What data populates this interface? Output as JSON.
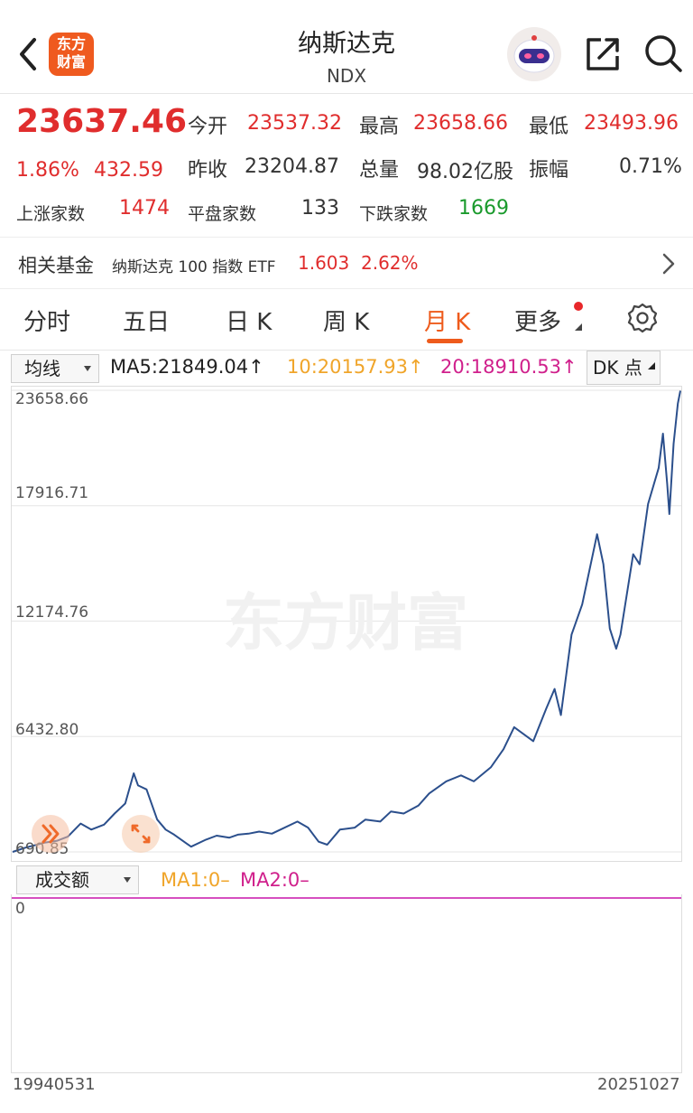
{
  "header": {
    "logo_text_line1": "东方",
    "logo_text_line2": "财富",
    "title": "纳斯达克",
    "subtitle": "NDX",
    "icons": [
      "back-arrow-icon",
      "assistant-robot-icon",
      "share-icon",
      "search-icon"
    ]
  },
  "quote": {
    "price": "23637.46",
    "change_pct": "1.86%",
    "change_abs": "432.59",
    "open_label": "今开",
    "open": "23537.32",
    "high_label": "最高",
    "high": "23658.66",
    "low_label": "最低",
    "low": "23493.96",
    "prev_close_label": "昨收",
    "prev_close": "23204.87",
    "volume_label": "总量",
    "volume": "98.02亿股",
    "amplitude_label": "振幅",
    "amplitude": "0.71%",
    "up_label": "上涨家数",
    "up_count": "1474",
    "flat_label": "平盘家数",
    "flat_count": "133",
    "down_label": "下跌家数",
    "down_count": "1669"
  },
  "fund": {
    "label": "相关基金",
    "name": "纳斯达克 100 指数 ETF",
    "price": "1.603",
    "change": "2.62%"
  },
  "tabs": [
    {
      "label": "分时"
    },
    {
      "label": "五日"
    },
    {
      "label": "日 K"
    },
    {
      "label": "周 K"
    },
    {
      "label": "月 K"
    },
    {
      "label": "更多"
    }
  ],
  "active_tab": "月 K",
  "ma": {
    "selector": "均线",
    "ma5": "MA5:21849.04↑",
    "ma10": "10:20157.93↑",
    "ma20": "20:18910.53↑",
    "dk": "DK 点"
  },
  "volume_panel": {
    "selector": "成交额",
    "ma1": "MA1:0–",
    "ma2": "MA2:0–",
    "zero_label": "0"
  },
  "watermark": "东方财富",
  "colors": {
    "up_red": "#e02d2d",
    "down_green": "#1a9a2c",
    "accent_orange": "#ee5b1c",
    "ma10_orange": "#f0a52a",
    "ma20_magenta": "#d0208c",
    "line_blue": "#2b4f8c"
  },
  "chart_data": {
    "type": "line",
    "y_tick_labels": [
      "23658.66",
      "17916.71",
      "12174.76",
      "6432.80",
      "690.85"
    ],
    "ylim": [
      690.85,
      23658.66
    ],
    "x_tick_labels": [
      "19940531",
      "20251027"
    ],
    "series": [
      {
        "values": [
          [
            1994.4,
            690.85
          ],
          [
            1995.0,
            900
          ],
          [
            1995.9,
            1150
          ],
          [
            1996.5,
            1250
          ],
          [
            1997.0,
            1450
          ],
          [
            1997.6,
            2100
          ],
          [
            1998.1,
            1800
          ],
          [
            1998.7,
            2050
          ],
          [
            1999.2,
            2600
          ],
          [
            1999.7,
            3100
          ],
          [
            2000.1,
            4600
          ],
          [
            2000.3,
            4000
          ],
          [
            2000.7,
            3800
          ],
          [
            2000.9,
            3200
          ],
          [
            2001.2,
            2300
          ],
          [
            2001.6,
            1800
          ],
          [
            2002.0,
            1550
          ],
          [
            2002.6,
            1100
          ],
          [
            2002.8,
            950
          ],
          [
            2003.5,
            1300
          ],
          [
            2004.0,
            1500
          ],
          [
            2004.6,
            1400
          ],
          [
            2005.0,
            1550
          ],
          [
            2005.5,
            1600
          ],
          [
            2006.0,
            1700
          ],
          [
            2006.6,
            1600
          ],
          [
            2007.0,
            1800
          ],
          [
            2007.8,
            2200
          ],
          [
            2008.3,
            1900
          ],
          [
            2008.8,
            1200
          ],
          [
            2009.2,
            1050
          ],
          [
            2009.8,
            1800
          ],
          [
            2010.5,
            1900
          ],
          [
            2011.0,
            2300
          ],
          [
            2011.7,
            2200
          ],
          [
            2012.2,
            2700
          ],
          [
            2012.8,
            2600
          ],
          [
            2013.5,
            3000
          ],
          [
            2014.0,
            3600
          ],
          [
            2014.8,
            4200
          ],
          [
            2015.5,
            4500
          ],
          [
            2016.1,
            4200
          ],
          [
            2016.9,
            4900
          ],
          [
            2017.5,
            5800
          ],
          [
            2018.0,
            6900
          ],
          [
            2018.9,
            6200
          ],
          [
            2019.5,
            7800
          ],
          [
            2019.9,
            8800
          ],
          [
            2020.2,
            7500
          ],
          [
            2020.7,
            11500
          ],
          [
            2021.2,
            13000
          ],
          [
            2021.9,
            16500
          ],
          [
            2022.2,
            15000
          ],
          [
            2022.5,
            11800
          ],
          [
            2022.8,
            10800
          ],
          [
            2023.0,
            11500
          ],
          [
            2023.6,
            15500
          ],
          [
            2023.9,
            15000
          ],
          [
            2024.3,
            18000
          ],
          [
            2024.8,
            19800
          ],
          [
            2025.0,
            21500
          ],
          [
            2025.2,
            19000
          ],
          [
            2025.3,
            17500
          ],
          [
            2025.5,
            21000
          ],
          [
            2025.7,
            23000
          ],
          [
            2025.82,
            23637.46
          ]
        ]
      }
    ],
    "grid": true,
    "legend": "none"
  }
}
